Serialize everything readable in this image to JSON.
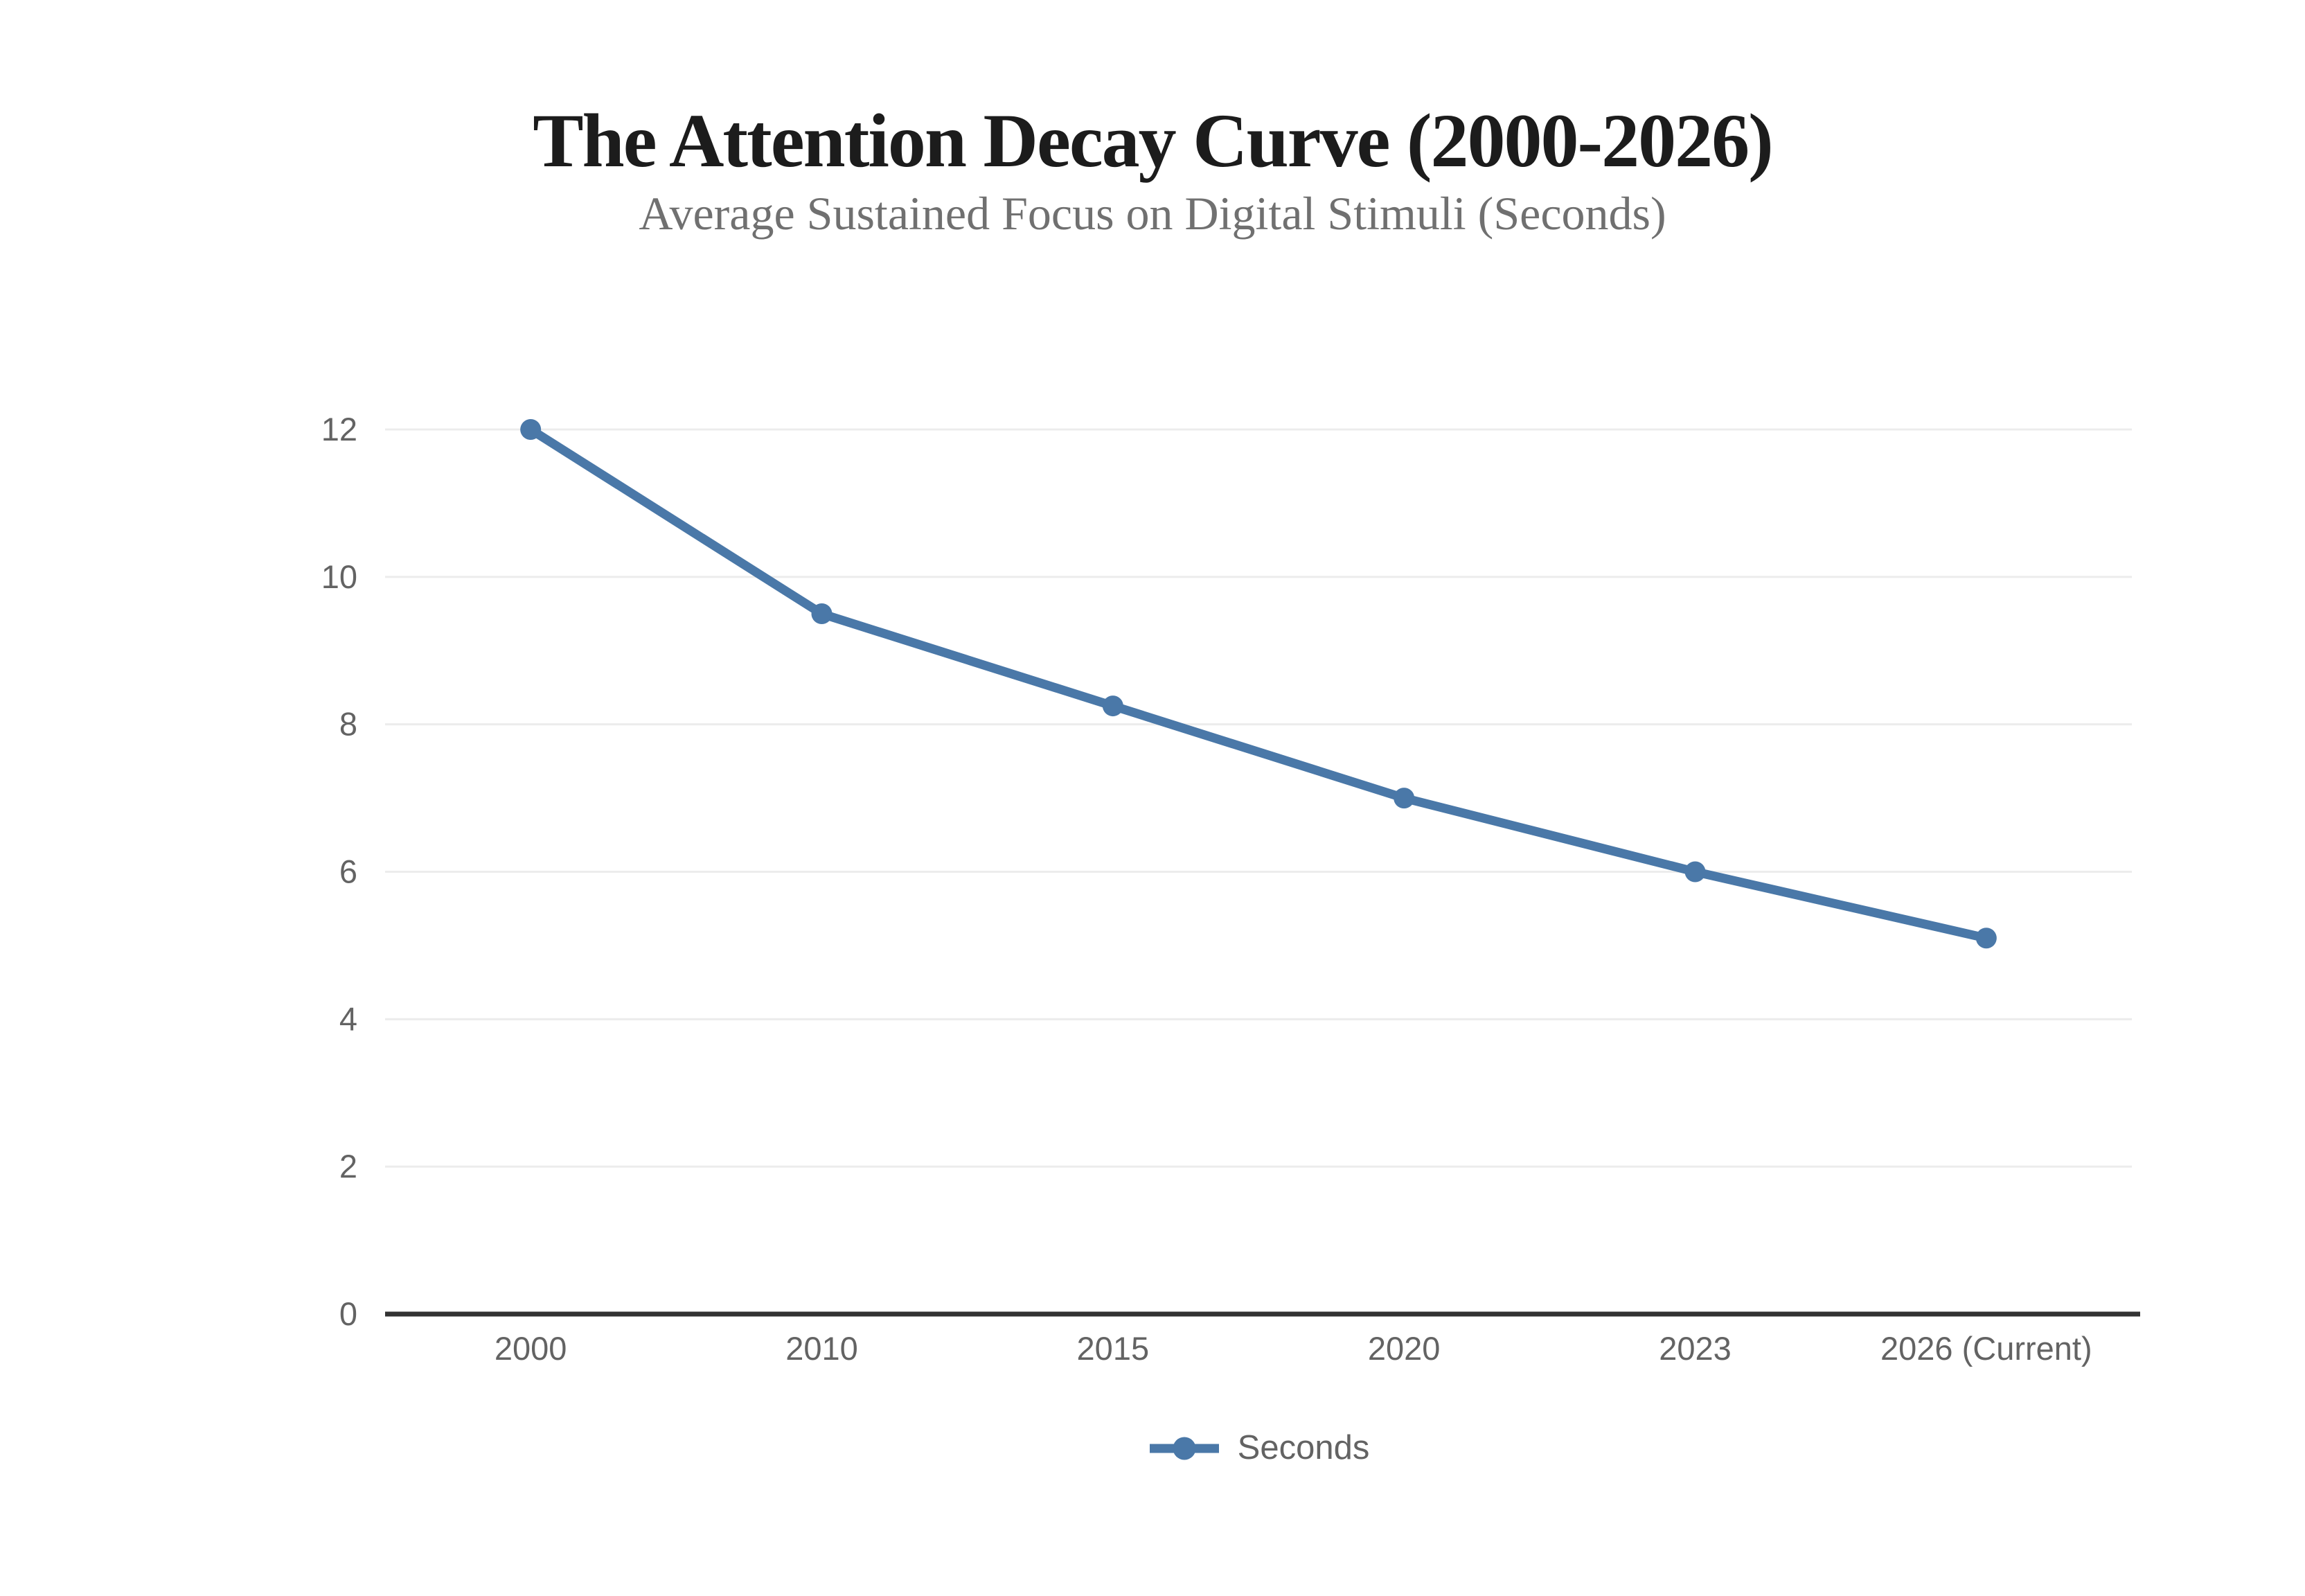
{
  "colors": {
    "line": "#4a78a8",
    "title": "#1c1c1c",
    "subtitle": "#707070",
    "tick": "#636363",
    "gridline": "#ececec",
    "axis": "#333333",
    "background": "#ffffff"
  },
  "chart_data": {
    "type": "line",
    "title": "The Attention Decay Curve (2000-2026)",
    "subtitle": "Average Sustained Focus on Digital Stimuli (Seconds)",
    "categories": [
      "2000",
      "2010",
      "2015",
      "2020",
      "2023",
      "2026 (Current)"
    ],
    "series": [
      {
        "name": "Seconds",
        "values": [
          12,
          9.5,
          8.25,
          7,
          6,
          5.1
        ]
      }
    ],
    "xlabel": "",
    "ylabel": "",
    "ylim": [
      0,
      12
    ],
    "yticks": [
      0,
      2,
      4,
      6,
      8,
      10,
      12
    ],
    "grid": true,
    "legend_position": "bottom",
    "marker": "circle"
  }
}
